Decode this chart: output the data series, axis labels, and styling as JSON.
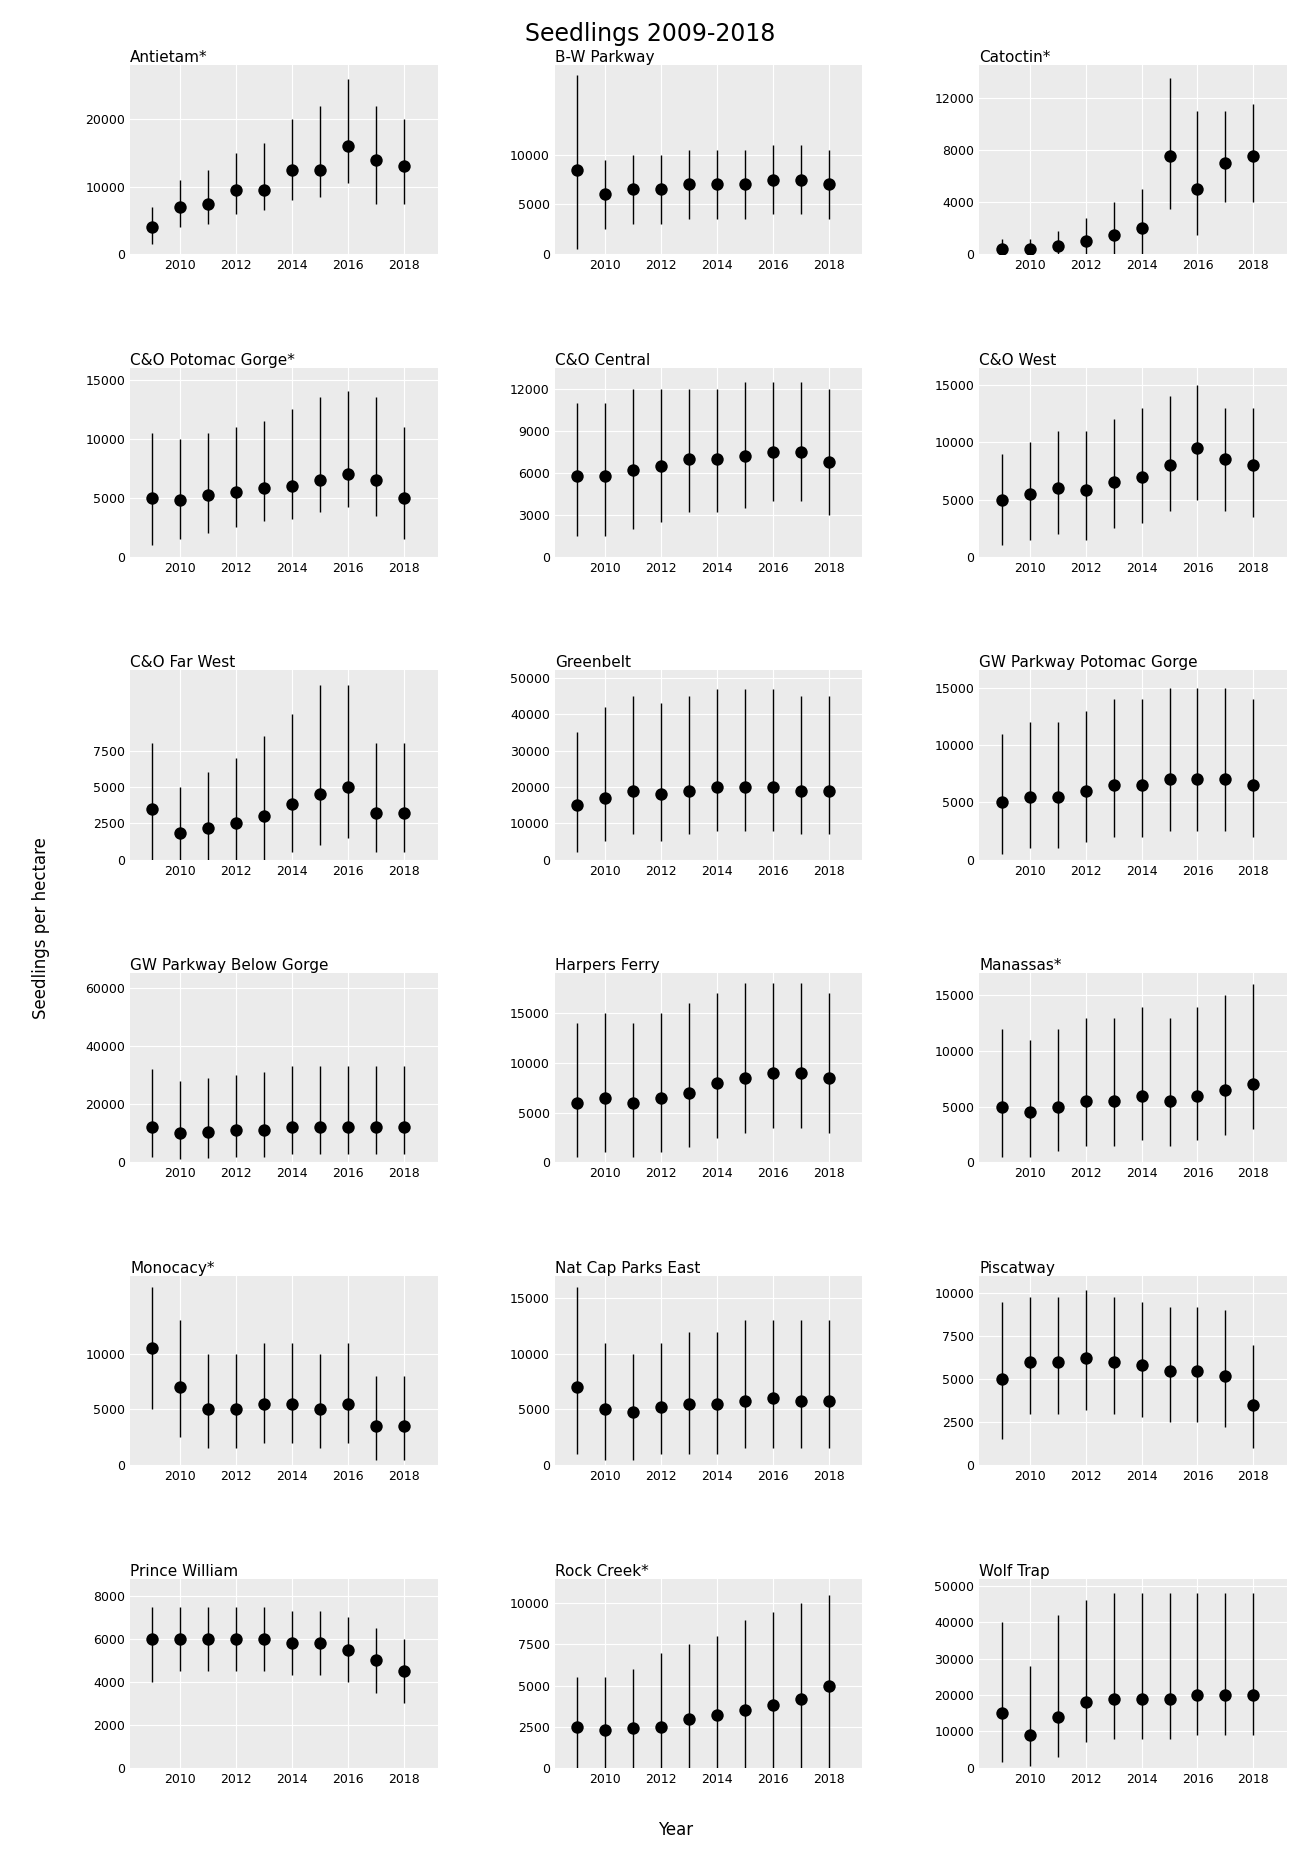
{
  "title": "Seedlings 2009-2018",
  "xlabel": "Year",
  "ylabel": "Seedlings per hectare",
  "years": [
    2009,
    2010,
    2011,
    2012,
    2013,
    2014,
    2015,
    2016,
    2017,
    2018
  ],
  "panels": [
    {
      "name": "Antietam*",
      "mean": [
        4000,
        7000,
        7500,
        9500,
        9500,
        12500,
        12500,
        16000,
        14000,
        13000
      ],
      "low": [
        1500,
        4000,
        4500,
        6000,
        6500,
        8000,
        8500,
        10500,
        7500,
        7500
      ],
      "high": [
        7000,
        11000,
        12500,
        15000,
        16500,
        20000,
        22000,
        26000,
        22000,
        20000
      ],
      "yticks": [
        0,
        10000,
        20000
      ],
      "ylim": [
        0,
        28000
      ]
    },
    {
      "name": "B-W Parkway",
      "mean": [
        8500,
        6000,
        6500,
        6500,
        7000,
        7000,
        7000,
        7500,
        7500,
        7000
      ],
      "low": [
        500,
        2500,
        3000,
        3000,
        3500,
        3500,
        3500,
        4000,
        4000,
        3500
      ],
      "high": [
        18000,
        9500,
        10000,
        10000,
        10500,
        10500,
        10500,
        11000,
        11000,
        10500
      ],
      "yticks": [
        0,
        5000,
        10000
      ],
      "ylim": [
        0,
        19000
      ]
    },
    {
      "name": "Catoctin*",
      "mean": [
        400,
        400,
        600,
        1000,
        1500,
        2000,
        7500,
        5000,
        7000,
        7500
      ],
      "low": [
        0,
        0,
        0,
        0,
        0,
        0,
        3500,
        1500,
        4000,
        4000
      ],
      "high": [
        1200,
        1200,
        1800,
        2800,
        4000,
        5000,
        13500,
        11000,
        11000,
        11500
      ],
      "yticks": [
        0,
        4000,
        8000,
        12000
      ],
      "ylim": [
        0,
        14500
      ]
    },
    {
      "name": "C&O Potomac Gorge*",
      "mean": [
        5000,
        4800,
        5200,
        5500,
        5800,
        6000,
        6500,
        7000,
        6500,
        5000
      ],
      "low": [
        1000,
        1500,
        2000,
        2500,
        3000,
        3200,
        3800,
        4200,
        3500,
        1500
      ],
      "high": [
        10500,
        10000,
        10500,
        11000,
        11500,
        12500,
        13500,
        14000,
        13500,
        11000
      ],
      "yticks": [
        0,
        5000,
        10000,
        15000
      ],
      "ylim": [
        0,
        16000
      ]
    },
    {
      "name": "C&O Central",
      "mean": [
        5800,
        5800,
        6200,
        6500,
        7000,
        7000,
        7200,
        7500,
        7500,
        6800
      ],
      "low": [
        1500,
        1500,
        2000,
        2500,
        3200,
        3200,
        3500,
        4000,
        4000,
        3000
      ],
      "high": [
        11000,
        11000,
        12000,
        12000,
        12000,
        12000,
        12500,
        12500,
        12500,
        12000
      ],
      "yticks": [
        0,
        3000,
        6000,
        9000,
        12000
      ],
      "ylim": [
        0,
        13500
      ]
    },
    {
      "name": "C&O West",
      "mean": [
        5000,
        5500,
        6000,
        5800,
        6500,
        7000,
        8000,
        9500,
        8500,
        8000
      ],
      "low": [
        1000,
        1500,
        2000,
        1500,
        2500,
        3000,
        4000,
        5000,
        4000,
        3500
      ],
      "high": [
        9000,
        10000,
        11000,
        11000,
        12000,
        13000,
        14000,
        15000,
        13000,
        13000
      ],
      "yticks": [
        0,
        5000,
        10000,
        15000
      ],
      "ylim": [
        0,
        16500
      ]
    },
    {
      "name": "C&O Far West",
      "mean": [
        3500,
        1800,
        2200,
        2500,
        3000,
        3800,
        4500,
        5000,
        3200,
        3200
      ],
      "low": [
        0,
        0,
        0,
        0,
        0,
        500,
        1000,
        1500,
        500,
        500
      ],
      "high": [
        8000,
        5000,
        6000,
        7000,
        8500,
        10000,
        12000,
        12000,
        8000,
        8000
      ],
      "yticks": [
        0,
        2500,
        5000,
        7500
      ],
      "ylim": [
        0,
        13000
      ]
    },
    {
      "name": "Greenbelt",
      "mean": [
        15000,
        17000,
        19000,
        18000,
        19000,
        20000,
        20000,
        20000,
        19000,
        19000
      ],
      "low": [
        2000,
        5000,
        7000,
        5000,
        7000,
        8000,
        8000,
        8000,
        7000,
        7000
      ],
      "high": [
        35000,
        42000,
        45000,
        43000,
        45000,
        47000,
        47000,
        47000,
        45000,
        45000
      ],
      "yticks": [
        0,
        10000,
        20000,
        30000,
        40000,
        50000
      ],
      "ylim": [
        0,
        52000
      ]
    },
    {
      "name": "GW Parkway Potomac Gorge",
      "mean": [
        5000,
        5500,
        5500,
        6000,
        6500,
        6500,
        7000,
        7000,
        7000,
        6500
      ],
      "low": [
        500,
        1000,
        1000,
        1500,
        2000,
        2000,
        2500,
        2500,
        2500,
        2000
      ],
      "high": [
        11000,
        12000,
        12000,
        13000,
        14000,
        14000,
        15000,
        15000,
        15000,
        14000
      ],
      "yticks": [
        0,
        5000,
        10000,
        15000
      ],
      "ylim": [
        0,
        16500
      ]
    },
    {
      "name": "GW Parkway Below Gorge",
      "mean": [
        12000,
        10000,
        10500,
        11000,
        11000,
        12000,
        12000,
        12000,
        12000,
        12000
      ],
      "low": [
        2000,
        1000,
        1500,
        2000,
        2000,
        3000,
        3000,
        3000,
        3000,
        3000
      ],
      "high": [
        32000,
        28000,
        29000,
        30000,
        31000,
        33000,
        33000,
        33000,
        33000,
        33000
      ],
      "yticks": [
        0,
        20000,
        40000,
        60000
      ],
      "ylim": [
        0,
        65000
      ]
    },
    {
      "name": "Harpers Ferry",
      "mean": [
        6000,
        6500,
        6000,
        6500,
        7000,
        8000,
        8500,
        9000,
        9000,
        8500
      ],
      "low": [
        500,
        1000,
        500,
        1000,
        1500,
        2500,
        3000,
        3500,
        3500,
        3000
      ],
      "high": [
        14000,
        15000,
        14000,
        15000,
        16000,
        17000,
        18000,
        18000,
        18000,
        17000
      ],
      "yticks": [
        0,
        5000,
        10000,
        15000
      ],
      "ylim": [
        0,
        19000
      ]
    },
    {
      "name": "Manassas*",
      "mean": [
        5000,
        4500,
        5000,
        5500,
        5500,
        6000,
        5500,
        6000,
        6500,
        7000
      ],
      "low": [
        500,
        500,
        1000,
        1500,
        1500,
        2000,
        1500,
        2000,
        2500,
        3000
      ],
      "high": [
        12000,
        11000,
        12000,
        13000,
        13000,
        14000,
        13000,
        14000,
        15000,
        16000
      ],
      "yticks": [
        0,
        5000,
        10000,
        15000
      ],
      "ylim": [
        0,
        17000
      ]
    },
    {
      "name": "Monocacy*",
      "mean": [
        10500,
        7000,
        5000,
        5000,
        5500,
        5500,
        5000,
        5500,
        3500,
        3500
      ],
      "low": [
        5000,
        2500,
        1500,
        1500,
        2000,
        2000,
        1500,
        2000,
        500,
        500
      ],
      "high": [
        16000,
        13000,
        10000,
        10000,
        11000,
        11000,
        10000,
        11000,
        8000,
        8000
      ],
      "yticks": [
        0,
        5000,
        10000
      ],
      "ylim": [
        0,
        17000
      ]
    },
    {
      "name": "Nat Cap Parks East",
      "mean": [
        7000,
        5000,
        4800,
        5200,
        5500,
        5500,
        5800,
        6000,
        5800,
        5800
      ],
      "low": [
        1000,
        500,
        500,
        1000,
        1000,
        1000,
        1500,
        1500,
        1500,
        1500
      ],
      "high": [
        16000,
        11000,
        10000,
        11000,
        12000,
        12000,
        13000,
        13000,
        13000,
        13000
      ],
      "yticks": [
        0,
        5000,
        10000,
        15000
      ],
      "ylim": [
        0,
        17000
      ]
    },
    {
      "name": "Piscatway",
      "mean": [
        5000,
        6000,
        6000,
        6200,
        6000,
        5800,
        5500,
        5500,
        5200,
        3500
      ],
      "low": [
        1500,
        3000,
        3000,
        3200,
        3000,
        2800,
        2500,
        2500,
        2200,
        1000
      ],
      "high": [
        9500,
        9800,
        9800,
        10200,
        9800,
        9500,
        9200,
        9200,
        9000,
        7000
      ],
      "yticks": [
        0,
        2500,
        5000,
        7500,
        10000
      ],
      "ylim": [
        0,
        11000
      ]
    },
    {
      "name": "Prince William",
      "mean": [
        6000,
        6000,
        6000,
        6000,
        6000,
        5800,
        5800,
        5500,
        5000,
        4500
      ],
      "low": [
        4000,
        4500,
        4500,
        4500,
        4500,
        4300,
        4300,
        4000,
        3500,
        3000
      ],
      "high": [
        7500,
        7500,
        7500,
        7500,
        7500,
        7300,
        7300,
        7000,
        6500,
        6000
      ],
      "yticks": [
        0,
        2000,
        4000,
        6000,
        8000
      ],
      "ylim": [
        0,
        8800
      ]
    },
    {
      "name": "Rock Creek*",
      "mean": [
        2500,
        2300,
        2400,
        2500,
        3000,
        3200,
        3500,
        3800,
        4200,
        5000
      ],
      "low": [
        0,
        0,
        0,
        0,
        0,
        0,
        0,
        0,
        0,
        0
      ],
      "high": [
        5500,
        5500,
        6000,
        7000,
        7500,
        8000,
        9000,
        9500,
        10000,
        10500
      ],
      "yticks": [
        0,
        2500,
        5000,
        7500,
        10000
      ],
      "ylim": [
        0,
        11500
      ]
    },
    {
      "name": "Wolf Trap",
      "mean": [
        15000,
        9000,
        14000,
        18000,
        19000,
        19000,
        19000,
        20000,
        20000,
        20000
      ],
      "low": [
        1500,
        500,
        3000,
        7000,
        8000,
        8000,
        8000,
        9000,
        9000,
        9000
      ],
      "high": [
        40000,
        28000,
        42000,
        46000,
        48000,
        48000,
        48000,
        48000,
        48000,
        48000
      ],
      "yticks": [
        0,
        10000,
        20000,
        30000,
        40000,
        50000
      ],
      "ylim": [
        0,
        52000
      ]
    }
  ],
  "background_color": "#ebebeb",
  "point_color": "black",
  "point_size": 80,
  "line_color": "black",
  "title_fontsize": 17,
  "label_fontsize": 12,
  "tick_fontsize": 9,
  "panel_title_fontsize": 11
}
